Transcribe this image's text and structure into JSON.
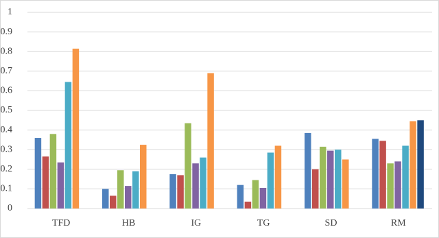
{
  "chart_data": {
    "type": "bar",
    "categories": [
      "TFD",
      "HB",
      "IG",
      "TG",
      "SD",
      "RM"
    ],
    "series": [
      {
        "color": "#4f81bd",
        "values": [
          0.36,
          0.1,
          0.175,
          0.12,
          0.385,
          0.355
        ]
      },
      {
        "color": "#c0504d",
        "values": [
          0.265,
          0.065,
          0.17,
          0.035,
          0.2,
          0.345
        ]
      },
      {
        "color": "#9bbb59",
        "values": [
          0.38,
          0.195,
          0.435,
          0.145,
          0.315,
          0.23
        ]
      },
      {
        "color": "#8064a2",
        "values": [
          0.235,
          0.115,
          0.23,
          0.105,
          0.295,
          0.24
        ]
      },
      {
        "color": "#4bacc6",
        "values": [
          0.645,
          0.19,
          0.26,
          0.285,
          0.3,
          0.32
        ]
      },
      {
        "color": "#f79646",
        "values": [
          0.815,
          0.325,
          0.69,
          0.32,
          0.25,
          0.445
        ]
      },
      {
        "color": "#1f497d",
        "values": [
          null,
          null,
          null,
          null,
          null,
          0.45
        ]
      }
    ],
    "ylim": [
      0,
      1
    ],
    "yticks": [
      0,
      0.1,
      0.2,
      0.3,
      0.4,
      0.5,
      0.6,
      0.7,
      0.8,
      0.9,
      1
    ],
    "grid": true
  }
}
